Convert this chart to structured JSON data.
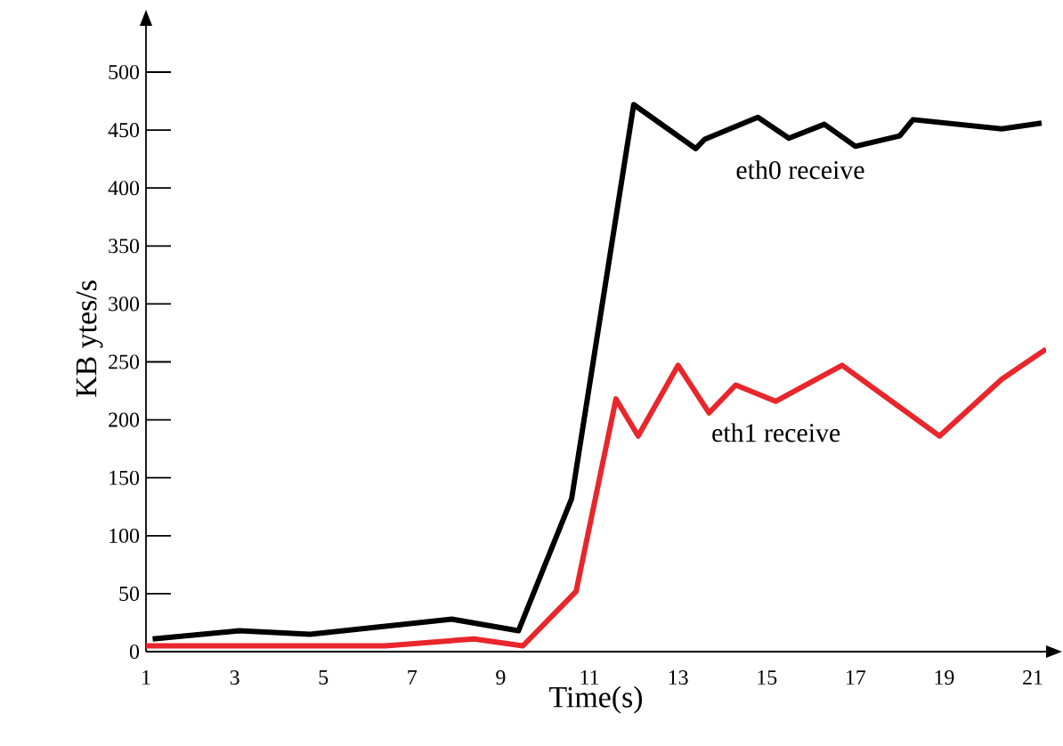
{
  "chart_data": {
    "type": "line",
    "xlabel": "Time(s)",
    "ylabel": "KB ytes/s",
    "xlim": [
      1,
      21.3
    ],
    "ylim": [
      0,
      540
    ],
    "xticks": [
      1,
      3,
      5,
      7,
      9,
      11,
      13,
      15,
      17,
      19,
      21
    ],
    "yticks": [
      0,
      50,
      100,
      150,
      200,
      250,
      300,
      350,
      400,
      450,
      500
    ],
    "grid": false,
    "legend": false,
    "marker": "none",
    "line_style": "solid",
    "series": [
      {
        "name": "eth0 receive",
        "color": "#000000",
        "x": [
          1.15,
          3.1,
          4.7,
          7.9,
          9.4,
          10.6,
          12.0,
          13.4,
          13.6,
          14.8,
          15.5,
          16.3,
          17.0,
          18.0,
          18.3,
          20.3,
          21.2
        ],
        "values": [
          11,
          18,
          15,
          28,
          18,
          132,
          472,
          434,
          442,
          461,
          443,
          455,
          436,
          445,
          459,
          451,
          456
        ]
      },
      {
        "name": "eth1 receive",
        "color": "#e8262b",
        "x": [
          1,
          6.4,
          8.4,
          9.5,
          10.7,
          11.6,
          12.1,
          13.0,
          13.7,
          14.3,
          15.2,
          16.7,
          18.9,
          20.3,
          21.3
        ],
        "values": [
          5,
          5,
          11,
          5,
          52,
          218,
          186,
          247,
          206,
          230,
          216,
          247,
          186,
          235,
          261
        ]
      }
    ]
  }
}
